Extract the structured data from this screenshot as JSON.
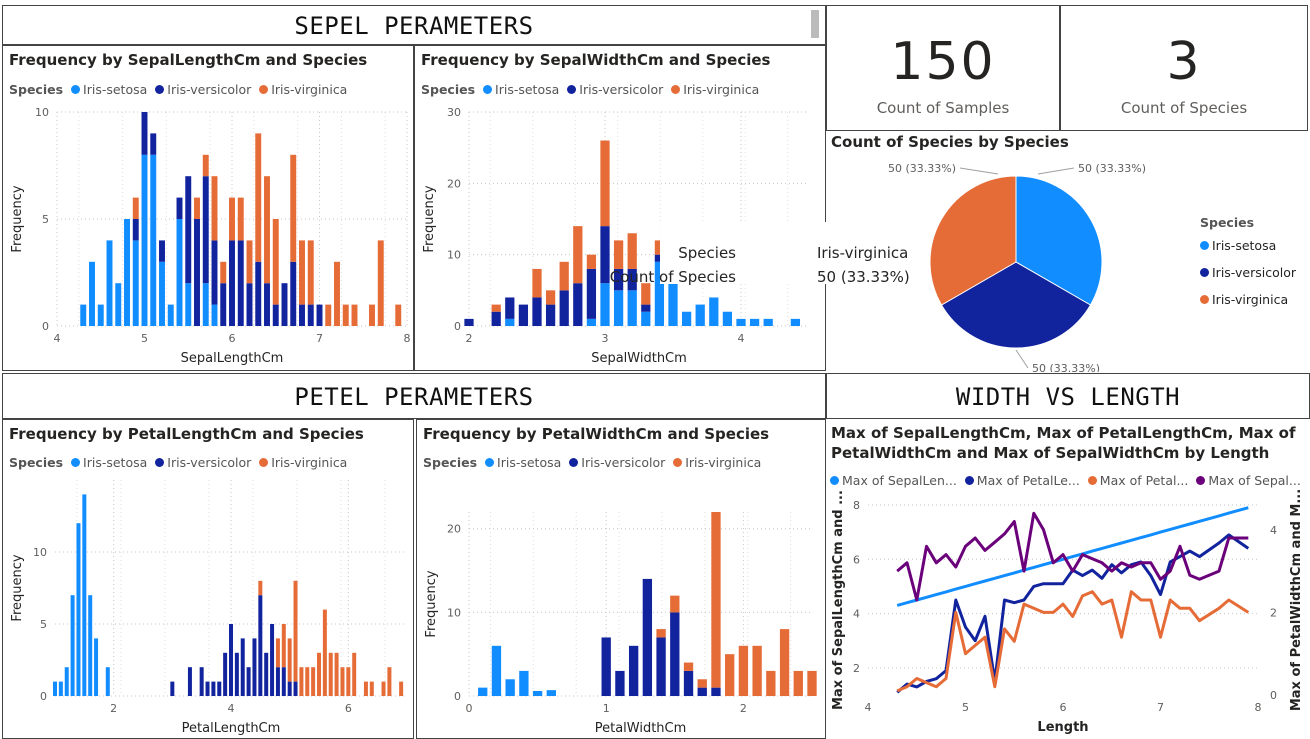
{
  "sections": {
    "sepal": "SEPEL PERAMETERS",
    "petal": "PETEL PERAMETERS",
    "width_length": "WIDTH VS LENGTH"
  },
  "legend_title": "Species",
  "species": [
    "Iris-setosa",
    "Iris-versicolor",
    "Iris-virginica"
  ],
  "colors": {
    "setosa": "#118DFF",
    "versicolor": "#12239E",
    "virginica": "#E66C37",
    "purple": "#6B007B"
  },
  "cards": [
    {
      "value": "150",
      "label": "Count of Samples"
    },
    {
      "value": "3",
      "label": "Count of Species"
    }
  ],
  "tooltip": {
    "k1": "Species",
    "v1": "Iris-virginica",
    "k2": "Count of Species",
    "v2": "50 (33.33%)"
  },
  "chart_data": [
    {
      "type": "bar",
      "title": "Frequency by SepalLengthCm and Species",
      "xlabel": "SepalLengthCm",
      "ylabel": "Frequency",
      "xlim": [
        4,
        8
      ],
      "ylim": [
        0,
        10
      ],
      "xticks": [
        "4",
        "5",
        "6",
        "7",
        "8"
      ],
      "yticks": [
        "0",
        "5",
        "10"
      ],
      "x": [
        4.3,
        4.4,
        4.5,
        4.6,
        4.7,
        4.8,
        4.9,
        5.0,
        5.1,
        5.2,
        5.3,
        5.4,
        5.5,
        5.6,
        5.7,
        5.8,
        5.9,
        6.0,
        6.1,
        6.2,
        6.3,
        6.4,
        6.5,
        6.6,
        6.7,
        6.8,
        6.9,
        7.0,
        7.1,
        7.2,
        7.3,
        7.4,
        7.6,
        7.7,
        7.9
      ],
      "series": [
        {
          "name": "Iris-setosa",
          "values": [
            1,
            3,
            1,
            4,
            2,
            5,
            4,
            8,
            8,
            3,
            1,
            5,
            2,
            0,
            2,
            1,
            0,
            0,
            0,
            0,
            0,
            0,
            0,
            0,
            0,
            0,
            0,
            0,
            0,
            0,
            0,
            0,
            0,
            0,
            0
          ]
        },
        {
          "name": "Iris-versicolor",
          "values": [
            0,
            0,
            0,
            0,
            0,
            0,
            1,
            2,
            1,
            1,
            0,
            1,
            5,
            5,
            5,
            3,
            2,
            4,
            4,
            2,
            3,
            2,
            1,
            2,
            3,
            1,
            1,
            1,
            0,
            0,
            0,
            0,
            0,
            0,
            0
          ]
        },
        {
          "name": "Iris-virginica",
          "values": [
            0,
            0,
            0,
            0,
            0,
            0,
            1,
            0,
            0,
            0,
            0,
            0,
            0,
            1,
            1,
            3,
            1,
            2,
            2,
            2,
            6,
            5,
            4,
            0,
            5,
            3,
            3,
            0,
            1,
            3,
            1,
            1,
            1,
            4,
            1
          ]
        }
      ]
    },
    {
      "type": "bar",
      "title": "Frequency by SepalWidthCm and Species",
      "xlabel": "SepalWidthCm",
      "ylabel": "Frequency",
      "xlim": [
        2,
        4.5
      ],
      "ylim": [
        0,
        30
      ],
      "xticks": [
        "2",
        "3",
        "4"
      ],
      "yticks": [
        "0",
        "10",
        "20",
        "30"
      ],
      "x": [
        2.0,
        2.2,
        2.3,
        2.4,
        2.5,
        2.6,
        2.7,
        2.8,
        2.9,
        3.0,
        3.1,
        3.2,
        3.3,
        3.4,
        3.5,
        3.6,
        3.7,
        3.8,
        3.9,
        4.0,
        4.1,
        4.2,
        4.4
      ],
      "series": [
        {
          "name": "Iris-setosa",
          "values": [
            0,
            0,
            1,
            0,
            0,
            0,
            0,
            0,
            1,
            6,
            5,
            5,
            2,
            9,
            6,
            2,
            3,
            4,
            2,
            1,
            1,
            1,
            1
          ]
        },
        {
          "name": "Iris-versicolor",
          "values": [
            1,
            2,
            3,
            3,
            4,
            3,
            5,
            6,
            7,
            8,
            3,
            3,
            1,
            1,
            0,
            0,
            0,
            0,
            0,
            0,
            0,
            0,
            0
          ]
        },
        {
          "name": "Iris-virginica",
          "values": [
            0,
            1,
            0,
            0,
            4,
            2,
            4,
            8,
            2,
            12,
            4,
            5,
            3,
            2,
            0,
            0,
            0,
            0,
            0,
            0,
            0,
            0,
            0
          ]
        }
      ]
    },
    {
      "type": "bar",
      "title": "Frequency by PetalLengthCm and Species",
      "xlabel": "PetalLengthCm",
      "ylabel": "Frequency",
      "xlim": [
        1,
        7
      ],
      "ylim": [
        0,
        15
      ],
      "xticks": [
        "2",
        "4",
        "6"
      ],
      "yticks": [
        "0",
        "5",
        "10"
      ],
      "x": [
        1.0,
        1.1,
        1.2,
        1.3,
        1.4,
        1.5,
        1.6,
        1.7,
        1.9,
        3.0,
        3.3,
        3.5,
        3.6,
        3.7,
        3.8,
        3.9,
        4.0,
        4.1,
        4.2,
        4.3,
        4.4,
        4.5,
        4.6,
        4.7,
        4.8,
        4.9,
        5.0,
        5.1,
        5.2,
        5.3,
        5.4,
        5.5,
        5.6,
        5.7,
        5.8,
        5.9,
        6.0,
        6.1,
        6.3,
        6.4,
        6.6,
        6.7,
        6.9
      ],
      "series": [
        {
          "name": "Iris-setosa",
          "values": [
            1,
            1,
            2,
            7,
            12,
            14,
            7,
            4,
            2,
            0,
            0,
            0,
            0,
            0,
            0,
            0,
            0,
            0,
            0,
            0,
            0,
            0,
            0,
            0,
            0,
            0,
            0,
            0,
            0,
            0,
            0,
            0,
            0,
            0,
            0,
            0,
            0,
            0,
            0,
            0,
            0,
            0,
            0
          ]
        },
        {
          "name": "Iris-versicolor",
          "values": [
            0,
            0,
            0,
            0,
            0,
            0,
            0,
            0,
            0,
            1,
            2,
            2,
            1,
            1,
            1,
            3,
            5,
            3,
            4,
            2,
            4,
            7,
            3,
            5,
            2,
            2,
            1,
            1,
            0,
            0,
            0,
            0,
            0,
            0,
            0,
            0,
            0,
            0,
            0,
            0,
            0,
            0,
            0
          ]
        },
        {
          "name": "Iris-virginica",
          "values": [
            0,
            0,
            0,
            0,
            0,
            0,
            0,
            0,
            0,
            0,
            0,
            0,
            0,
            0,
            0,
            0,
            0,
            0,
            0,
            0,
            0,
            1,
            0,
            0,
            2,
            3,
            3,
            7,
            2,
            2,
            2,
            3,
            6,
            3,
            3,
            2,
            2,
            3,
            1,
            1,
            1,
            2,
            1
          ]
        }
      ]
    },
    {
      "type": "bar",
      "title": "Frequency by PetalWidthCm and Species",
      "xlabel": "PetalWidthCm",
      "ylabel": "Frequency",
      "xlim": [
        0,
        2.5
      ],
      "ylim": [
        0,
        22
      ],
      "xticks": [
        "0",
        "1",
        "2"
      ],
      "yticks": [
        "0",
        "10",
        "20"
      ],
      "x": [
        0.1,
        0.2,
        0.3,
        0.4,
        0.5,
        0.6,
        1.0,
        1.1,
        1.2,
        1.3,
        1.4,
        1.5,
        1.6,
        1.7,
        1.8,
        1.9,
        2.0,
        2.1,
        2.2,
        2.3,
        2.4,
        2.5
      ],
      "series": [
        {
          "name": "Iris-setosa",
          "values": [
            1,
            6,
            2,
            3,
            0.6,
            0.7,
            0,
            0,
            0,
            0,
            0,
            0,
            0,
            0,
            0,
            0,
            0,
            0,
            0,
            0,
            0,
            0
          ]
        },
        {
          "name": "Iris-versicolor",
          "values": [
            0,
            0,
            0,
            0,
            0,
            0,
            7,
            3,
            6,
            14,
            7,
            10,
            3,
            1,
            1,
            0,
            0,
            0,
            0,
            0,
            0,
            0
          ]
        },
        {
          "name": "Iris-virginica",
          "values": [
            0,
            0,
            0,
            0,
            0,
            0,
            0,
            0,
            0,
            0,
            1,
            2,
            1,
            1,
            21,
            5,
            6,
            6,
            3,
            8,
            3,
            3
          ]
        }
      ]
    },
    {
      "type": "pie",
      "title": "Count of Species by Species",
      "legend_title": "Species",
      "labels": [
        "Iris-setosa",
        "Iris-versicolor",
        "Iris-virginica"
      ],
      "values": [
        50,
        50,
        50
      ],
      "data_labels": [
        "50 (33.33%)",
        "50 (33.33%)",
        "50 (33.33%)"
      ]
    },
    {
      "type": "line",
      "title": "Max of SepalLengthCm, Max of PetalLengthCm, Max of PetalWidthCm and Max of SepalWidthCm by Length",
      "xlabel": "Length",
      "ylabel_left": "Max of SepalLengthCm and ...",
      "ylabel_right": "Max of PetalWidthCm and M...",
      "legend": [
        "Max of SepalLen...",
        "Max of PetalLe...",
        "Max of Petal...",
        "Max of Sepal..."
      ],
      "xlim": [
        4,
        8
      ],
      "ylim_left": [
        1,
        8
      ],
      "ylim_right": [
        0,
        4.6
      ],
      "xticks": [
        "4",
        "5",
        "6",
        "7",
        "8"
      ],
      "yticks_left": [
        "2",
        "4",
        "6",
        "8"
      ],
      "yticks_right": [
        "0",
        "2",
        "4"
      ],
      "x": [
        4.3,
        4.4,
        4.5,
        4.6,
        4.7,
        4.8,
        4.9,
        5.0,
        5.1,
        5.2,
        5.3,
        5.4,
        5.5,
        5.6,
        5.7,
        5.8,
        5.9,
        6.0,
        6.1,
        6.2,
        6.3,
        6.4,
        6.5,
        6.6,
        6.7,
        6.8,
        6.9,
        7.0,
        7.1,
        7.2,
        7.3,
        7.4,
        7.6,
        7.7,
        7.9
      ],
      "series": [
        {
          "name": "Max of SepalLen...",
          "axis": "left",
          "values": [
            4.3,
            4.4,
            4.5,
            4.6,
            4.7,
            4.8,
            4.9,
            5.0,
            5.1,
            5.2,
            5.3,
            5.4,
            5.5,
            5.6,
            5.7,
            5.8,
            5.9,
            6.0,
            6.1,
            6.2,
            6.3,
            6.4,
            6.5,
            6.6,
            6.7,
            6.8,
            6.9,
            7.0,
            7.1,
            7.2,
            7.3,
            7.4,
            7.6,
            7.7,
            7.9
          ]
        },
        {
          "name": "Max of PetalLe...",
          "axis": "left",
          "values": [
            1.1,
            1.4,
            1.3,
            1.5,
            1.6,
            1.9,
            4.5,
            3.5,
            3.0,
            3.9,
            1.5,
            4.5,
            4.4,
            4.5,
            5.0,
            5.1,
            5.1,
            5.1,
            5.6,
            5.4,
            5.6,
            5.3,
            5.8,
            5.5,
            5.8,
            5.9,
            5.4,
            4.7,
            5.9,
            6.1,
            6.3,
            6.1,
            6.6,
            6.9,
            6.4
          ]
        },
        {
          "name": "Max of Petal...",
          "axis": "right",
          "values": [
            0.1,
            0.2,
            0.4,
            0.3,
            0.2,
            0.4,
            2.0,
            1.0,
            1.2,
            1.4,
            0.2,
            1.6,
            1.3,
            2.2,
            2.1,
            2.0,
            2.0,
            2.2,
            1.9,
            2.4,
            2.5,
            2.2,
            2.3,
            1.4,
            2.5,
            2.3,
            2.3,
            1.4,
            2.3,
            2.1,
            2.1,
            1.8,
            2.1,
            2.3,
            2.0
          ]
        },
        {
          "name": "Max of Sepal...",
          "axis": "right",
          "values": [
            3.0,
            3.2,
            2.3,
            3.6,
            3.2,
            3.4,
            3.1,
            3.6,
            3.8,
            3.5,
            3.7,
            3.9,
            4.2,
            3.0,
            4.4,
            4.0,
            3.2,
            3.4,
            3.0,
            3.4,
            3.3,
            3.2,
            3.0,
            3.2,
            3.1,
            3.2,
            3.2,
            2.8,
            3.0,
            3.6,
            2.9,
            2.8,
            3.0,
            3.8,
            3.8
          ]
        }
      ]
    }
  ]
}
